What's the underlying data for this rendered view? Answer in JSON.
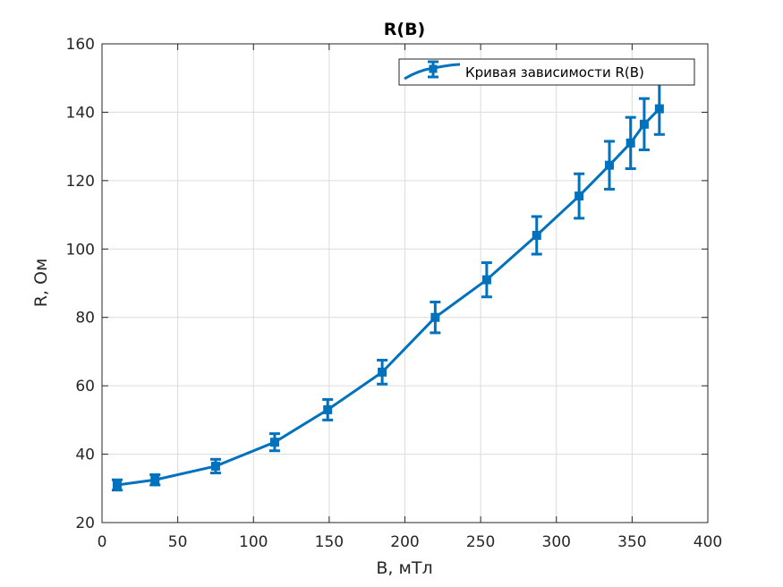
{
  "chart_data": {
    "type": "line",
    "title": "R(B)",
    "xlabel": "B, мТл",
    "ylabel": "R, Ом",
    "xlim": [
      0,
      400
    ],
    "ylim": [
      20,
      160
    ],
    "xticks": [
      0,
      50,
      100,
      150,
      200,
      250,
      300,
      350,
      400
    ],
    "yticks": [
      20,
      40,
      60,
      80,
      100,
      120,
      140,
      160
    ],
    "grid": true,
    "legend_position": "top-right",
    "series": [
      {
        "name": "Кривая зависимости R(B)",
        "color": "#0072BD",
        "x": [
          10,
          35,
          75,
          114,
          149,
          185,
          220,
          254,
          287,
          315,
          335,
          349,
          358,
          368
        ],
        "y": [
          31,
          32.5,
          36.5,
          43.5,
          53,
          64,
          80,
          91,
          104,
          115.5,
          124.5,
          131,
          136.5,
          141
        ],
        "err": [
          1.5,
          1.5,
          2,
          2.5,
          3,
          3.5,
          4.5,
          5,
          5.5,
          6.5,
          7,
          7.5,
          7.5,
          7.5
        ]
      }
    ]
  }
}
